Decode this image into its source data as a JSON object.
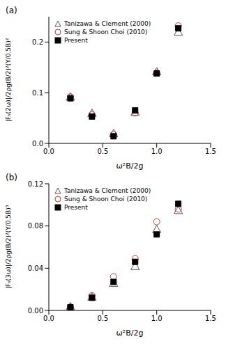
{
  "chart_data": [
    {
      "type": "scatter",
      "title": "(a)",
      "x_label": "ω²B/2g",
      "y_label": "|Fₕ(2ω)|/2ρg(B/2)²(Y/0.5B)²",
      "xlim": [
        0,
        1.5
      ],
      "xticks": [
        {
          "value": 0,
          "label": "0.0"
        },
        0.5,
        {
          "value": 1,
          "label": "1.0"
        },
        1.5
      ],
      "ylim": [
        0,
        0.25
      ],
      "yticks": [
        {
          "value": 0,
          "label": "0.0"
        },
        0.1,
        0.2
      ],
      "legend": "upper left",
      "x": [
        0.2,
        0.4,
        0.6,
        0.8,
        1.0,
        1.2
      ],
      "series": [
        {
          "name": "Tanizawa & Clement (2000)",
          "color": "#555555",
          "marker": "open_triangle",
          "values": [
            0.09,
            0.058,
            0.018,
            0.06,
            0.14,
            0.218
          ]
        },
        {
          "name": "Sung & Shoon Choi (2010)",
          "color": "#e03030",
          "marker": "open_circle",
          "values": [
            0.092,
            0.057,
            0.018,
            0.06,
            0.139,
            0.232
          ]
        },
        {
          "name": "Present",
          "color": "#000000",
          "marker": "square",
          "values": [
            0.089,
            0.053,
            0.014,
            0.065,
            0.138,
            0.227
          ]
        }
      ]
    },
    {
      "type": "scatter",
      "title": "(b)",
      "x_label": "ω²B/2g",
      "y_label": "|Fₕ(3ω)|/2ρg(B/2)²(Y/0.5B)³",
      "xlim": [
        0,
        1.5
      ],
      "xticks": [
        {
          "value": 0,
          "label": "0.0"
        },
        0.5,
        {
          "value": 1,
          "label": "1.0"
        },
        1.5
      ],
      "ylim": [
        0,
        0.12
      ],
      "yticks": [
        {
          "value": 0,
          "label": "0.00"
        },
        0.04,
        0.08,
        0.12
      ],
      "legend": "upper left",
      "x": [
        0.2,
        0.4,
        0.6,
        0.8,
        1.0,
        1.2
      ],
      "series": [
        {
          "name": "Tanizawa & Clement (2000)",
          "color": "#555555",
          "marker": "open_triangle",
          "values": [
            0.003,
            0.012,
            0.025,
            0.041,
            0.076,
            0.094
          ]
        },
        {
          "name": "Sung & Shoon Choi (2010)",
          "color": "#e03030",
          "marker": "open_circle",
          "values": [
            0.003,
            0.014,
            0.032,
            0.049,
            0.084,
            0.096
          ]
        },
        {
          "name": "Present",
          "color": "#000000",
          "marker": "square",
          "values": [
            0.003,
            0.012,
            0.027,
            0.046,
            0.072,
            0.101
          ]
        }
      ]
    }
  ]
}
